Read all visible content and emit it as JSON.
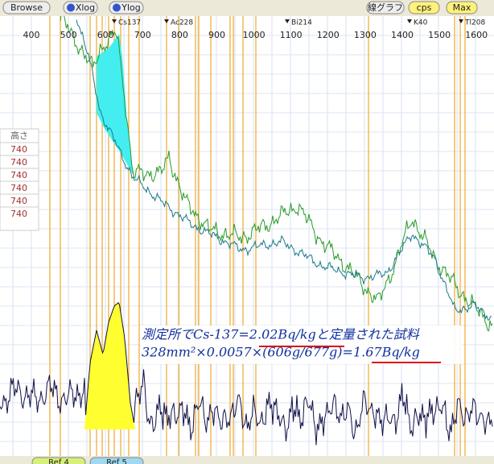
{
  "toolbar": {
    "buttons": [
      "Browse",
      "Xlog",
      "Ylog",
      "線グラフ",
      "cps",
      "Max"
    ]
  },
  "axis": {
    "ticks": [
      400,
      500,
      600,
      700,
      800,
      900,
      1000,
      1100,
      1200,
      1300,
      1400,
      1500,
      1600
    ]
  },
  "peaks": [
    "Cs137",
    "Ac228",
    "Bi214",
    "K40",
    "Tl208"
  ],
  "table": {
    "header": "高さ",
    "rows": [
      "740",
      "740",
      "740",
      "740",
      "740",
      "740"
    ]
  },
  "annotation": {
    "lines": [
      "測定所でCs-137=2.02Bq/kgと定量された試料",
      "328mm²×0.0057×(606g/677g)=1.67Bq/kg"
    ]
  },
  "tabs": [
    "Ref 4",
    "Ref 5"
  ]
}
